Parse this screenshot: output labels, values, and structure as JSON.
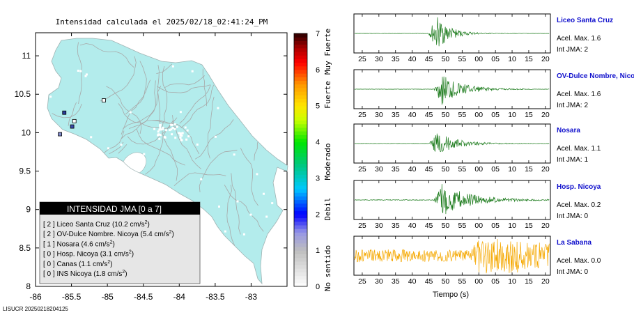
{
  "map": {
    "title": "Intensidad calculada el 2025/02/18_02:41:24_PM",
    "x_ticks": [
      "-86",
      "-85.5",
      "-85",
      "-84.5",
      "-84",
      "-83.5",
      "-83"
    ],
    "y_ticks": [
      "11",
      "10.5",
      "10",
      "9.5",
      "9",
      "8.5",
      "8"
    ],
    "land_color": "#b3ecec",
    "legend": {
      "title": "INTENSIDAD JMA [0 a 7]",
      "items": [
        {
          "intensity": "[ 2 ]",
          "name": "Liceo Santa Cruz",
          "accel": "(10.2 cm/s",
          "sup": "2",
          "close": ")"
        },
        {
          "intensity": "[ 2 ]",
          "name": "OV-Dulce Nombre. Nicoya",
          "accel": "(5.4 cm/s",
          "sup": "2",
          "close": ")"
        },
        {
          "intensity": "[ 1 ]",
          "name": "Nosara",
          "accel": "(4.6 cm/s",
          "sup": "2",
          "close": ")"
        },
        {
          "intensity": "[ 0 ]",
          "name": "Hosp. Nicoya",
          "accel": "(3.1 cm/s",
          "sup": "2",
          "close": ")"
        },
        {
          "intensity": "[ 0 ]",
          "name": "Canas",
          "accel": "(1.1 cm/s",
          "sup": "2",
          "close": ")"
        },
        {
          "intensity": "[ 0 ]",
          "name": "INS Nicoya",
          "accel": "(1.8 cm/s",
          "sup": "2",
          "close": ")"
        }
      ]
    },
    "stations": [
      {
        "lon": -85.6,
        "lat": 10.26,
        "color": "#2a3a9a"
      },
      {
        "lon": -85.49,
        "lat": 10.08,
        "color": "#3a4aaa"
      },
      {
        "lon": -85.46,
        "lat": 10.15,
        "color": "#ffffff"
      },
      {
        "lon": -85.66,
        "lat": 9.98,
        "color": "#7f88c8"
      },
      {
        "lon": -85.05,
        "lat": 10.42,
        "color": "#ffffff"
      }
    ],
    "footer": "LISUCR 20250218204125"
  },
  "colorbar": {
    "ticks": [
      "0",
      "1",
      "2",
      "3",
      "4",
      "5",
      "6",
      "7"
    ],
    "labels": [
      "No sentido",
      "Debil",
      "Moderado",
      "Fuerte",
      "Muy Fuerte"
    ]
  },
  "waveforms": {
    "x_ticks": [
      "25",
      "30",
      "35",
      "40",
      "45",
      "50",
      "55",
      "00",
      "05",
      "10",
      "15",
      "20"
    ],
    "xlabel": "Tiempo (s)",
    "panels": [
      {
        "name": "Liceo Santa Cruz",
        "accel": "Acel. Max. 1.6",
        "jma": "Int JMA: 2",
        "color": "#1a7a1a",
        "onset": 44.8,
        "peak": 0.95,
        "decay": 4.0,
        "noise": 0.01
      },
      {
        "name": "OV-Dulce Nombre, Nicoya",
        "accel": "Acel. Max. 1.6",
        "jma": "Int JMA: 2",
        "color": "#1a7a1a",
        "onset": 46.5,
        "peak": 0.9,
        "decay": 6.0,
        "noise": 0.01
      },
      {
        "name": "Nosara",
        "accel": "Acel. Max. 1.1",
        "jma": "Int JMA: 1",
        "color": "#1a7a1a",
        "onset": 45.0,
        "peak": 0.6,
        "decay": 6.0,
        "noise": 0.01
      },
      {
        "name": "Hosp. Nicoya",
        "accel": "Acel. Max. 0.2",
        "jma": "Int JMA: 0",
        "color": "#1a7a1a",
        "onset": 46.5,
        "peak": 0.9,
        "decay": 8.0,
        "noise": 0.02
      },
      {
        "name": "La Sabana",
        "accel": "Acel. Max. 0.0",
        "jma": "Int JMA: 0",
        "color": "#f5a800",
        "onset": 58.0,
        "peak": 0.9,
        "decay": 20.0,
        "noise": 0.35
      }
    ]
  },
  "chart_data": [
    {
      "type": "scatter",
      "title": "Intensidad calculada el 2025/02/18_02:41:24_PM",
      "xlim": [
        -86,
        -82.5
      ],
      "ylim": [
        8,
        11.3
      ],
      "x": [
        -85.6,
        -85.49,
        -85.46,
        -85.66,
        -85.05
      ],
      "y": [
        10.26,
        10.08,
        10.15,
        9.98,
        10.42
      ]
    },
    {
      "type": "line",
      "xlabel": "Tiempo (s)",
      "series": [
        {
          "name": "Liceo Santa Cruz"
        },
        {
          "name": "OV-Dulce Nombre, Nicoya"
        },
        {
          "name": "Nosara"
        },
        {
          "name": "Hosp. Nicoya"
        },
        {
          "name": "La Sabana"
        }
      ]
    }
  ]
}
